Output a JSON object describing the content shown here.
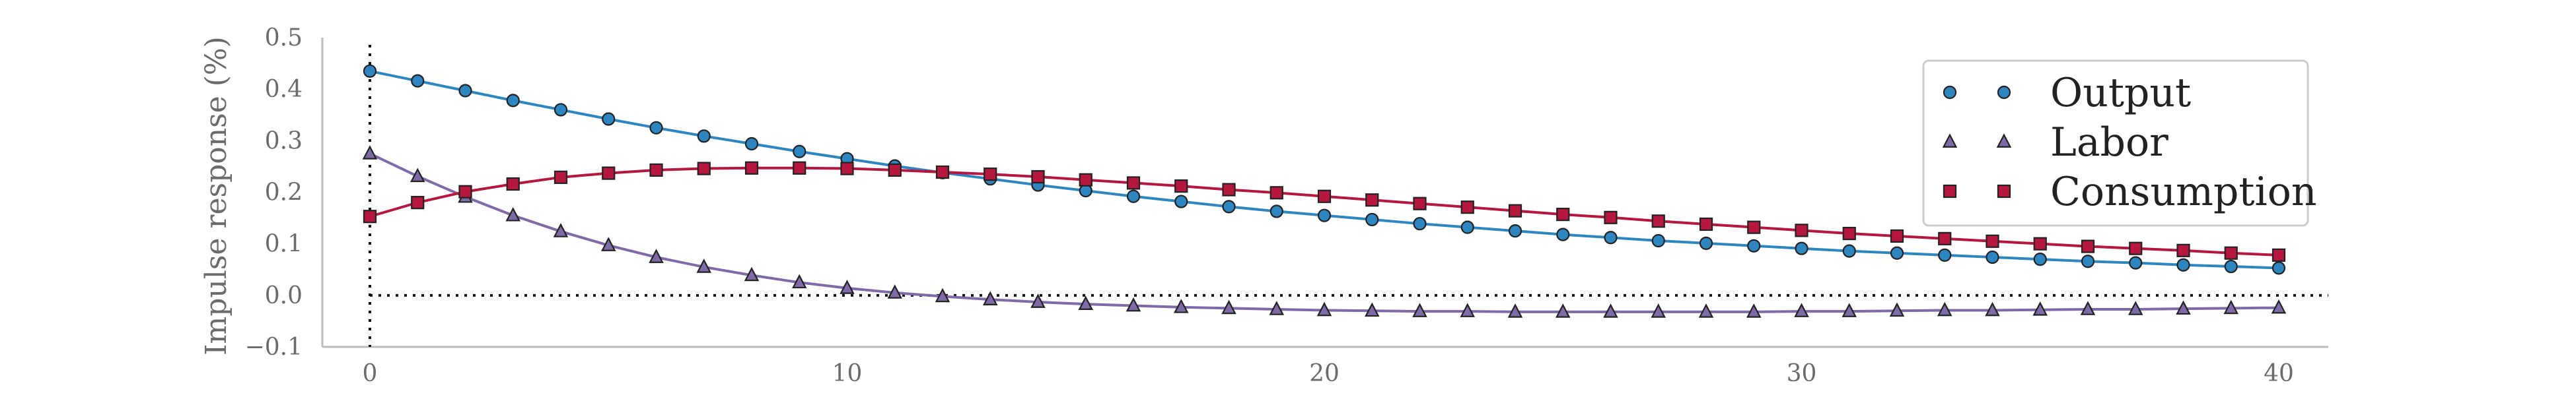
{
  "chart_data": {
    "type": "line",
    "title": "",
    "xlabel": "",
    "ylabel": "Impulse response (%)",
    "xlim": [
      -1,
      41
    ],
    "ylim": [
      -0.1,
      0.5
    ],
    "xticks": [
      "0",
      "10",
      "20",
      "30",
      "40"
    ],
    "yticks": [
      "0.5",
      "0.4",
      "0.3",
      "0.2",
      "0.1",
      "0.0",
      "−0.1"
    ],
    "grid": false,
    "legend_position": "top-right",
    "reference_lines": {
      "x": 0,
      "y": 0,
      "style": "dotted"
    },
    "x": [
      0,
      1,
      2,
      3,
      4,
      5,
      6,
      7,
      8,
      9,
      10,
      11,
      12,
      13,
      14,
      15,
      16,
      17,
      18,
      19,
      20,
      21,
      22,
      23,
      24,
      25,
      26,
      27,
      28,
      29,
      30,
      31,
      32,
      33,
      34,
      35,
      36,
      37,
      38,
      39,
      40
    ],
    "series": [
      {
        "name": "Output",
        "marker": "circle",
        "color": "#2e86c1",
        "values": [
          0.435,
          0.416,
          0.397,
          0.378,
          0.36,
          0.342,
          0.325,
          0.309,
          0.294,
          0.279,
          0.265,
          0.251,
          0.238,
          0.226,
          0.214,
          0.203,
          0.192,
          0.182,
          0.172,
          0.163,
          0.155,
          0.147,
          0.139,
          0.132,
          0.125,
          0.118,
          0.112,
          0.106,
          0.101,
          0.096,
          0.091,
          0.086,
          0.082,
          0.078,
          0.074,
          0.07,
          0.066,
          0.063,
          0.059,
          0.056,
          0.053
        ]
      },
      {
        "name": "Labor",
        "marker": "triangle",
        "color": "#7f6aa8",
        "values": [
          0.275,
          0.231,
          0.191,
          0.155,
          0.124,
          0.097,
          0.074,
          0.055,
          0.039,
          0.025,
          0.014,
          0.005,
          -0.002,
          -0.008,
          -0.013,
          -0.017,
          -0.02,
          -0.023,
          -0.025,
          -0.027,
          -0.029,
          -0.03,
          -0.031,
          -0.031,
          -0.032,
          -0.032,
          -0.032,
          -0.032,
          -0.032,
          -0.032,
          -0.031,
          -0.031,
          -0.03,
          -0.029,
          -0.029,
          -0.028,
          -0.027,
          -0.027,
          -0.026,
          -0.025,
          -0.024
        ]
      },
      {
        "name": "Consumption",
        "marker": "square",
        "color": "#b5173e",
        "values": [
          0.153,
          0.18,
          0.201,
          0.216,
          0.229,
          0.237,
          0.243,
          0.246,
          0.247,
          0.247,
          0.246,
          0.243,
          0.239,
          0.235,
          0.23,
          0.224,
          0.218,
          0.212,
          0.205,
          0.199,
          0.192,
          0.185,
          0.178,
          0.171,
          0.164,
          0.157,
          0.151,
          0.144,
          0.138,
          0.132,
          0.126,
          0.12,
          0.115,
          0.11,
          0.105,
          0.1,
          0.095,
          0.091,
          0.087,
          0.082,
          0.078
        ]
      }
    ]
  }
}
